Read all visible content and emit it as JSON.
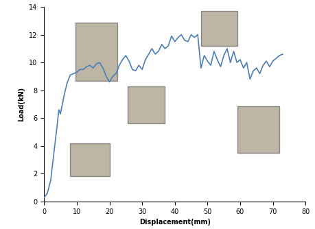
{
  "chart_data": {
    "type": "line",
    "x_label": "Displacement(mm)",
    "y_label": "Load(kN)",
    "x": [
      0,
      1,
      2,
      3,
      4,
      4.5,
      5,
      6,
      7,
      8,
      9,
      10,
      11,
      12,
      13,
      14,
      15,
      16,
      17,
      18,
      19,
      20,
      21,
      22,
      23,
      24,
      25,
      26,
      27,
      28,
      29,
      30,
      31,
      32,
      33,
      34,
      35,
      36,
      37,
      38,
      39,
      40,
      41,
      42,
      43,
      44,
      45,
      46,
      47,
      48,
      49,
      50,
      51,
      52,
      53,
      54,
      55,
      56,
      57,
      58,
      59,
      60,
      61,
      62,
      63,
      64,
      65,
      66,
      67,
      68,
      69,
      70,
      71,
      72,
      73
    ],
    "values": [
      0.3,
      0.6,
      1.5,
      3.5,
      5.5,
      6.6,
      6.3,
      7.5,
      8.5,
      9.1,
      9.2,
      9.3,
      9.5,
      9.5,
      9.7,
      9.8,
      9.6,
      9.9,
      10.0,
      9.6,
      9.0,
      8.6,
      9.0,
      9.2,
      9.8,
      10.2,
      10.5,
      10.1,
      9.5,
      9.4,
      9.8,
      9.5,
      10.2,
      10.6,
      11.0,
      10.6,
      10.8,
      11.3,
      11.0,
      11.2,
      11.9,
      11.5,
      11.8,
      12.0,
      11.6,
      11.5,
      12.0,
      11.8,
      12.0,
      9.6,
      10.5,
      10.1,
      9.8,
      10.8,
      10.2,
      9.7,
      10.5,
      11.0,
      10.0,
      10.8,
      10.0,
      10.2,
      9.6,
      10.0,
      8.8,
      9.4,
      9.6,
      9.2,
      9.8,
      10.1,
      9.7,
      10.1,
      10.3,
      10.5,
      10.6
    ],
    "color": "#4a7ebb",
    "xlim": [
      0,
      80
    ],
    "xticks": [
      0,
      10,
      20,
      30,
      40,
      50,
      60,
      70,
      80
    ],
    "ylim": [
      0,
      14
    ],
    "yticks": [
      0,
      2,
      4,
      6,
      8,
      10,
      12,
      14
    ],
    "grid": false
  }
}
